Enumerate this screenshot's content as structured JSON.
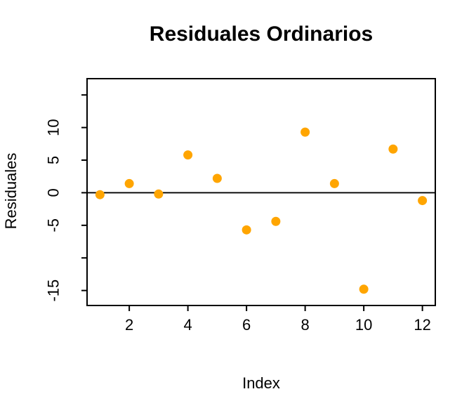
{
  "chart_data": {
    "type": "scatter",
    "title": "Residuales Ordinarios",
    "xlabel": "Index",
    "ylabel": "Residuales",
    "x": [
      1,
      2,
      3,
      4,
      5,
      6,
      7,
      8,
      9,
      10,
      11,
      12
    ],
    "values": [
      -0.3,
      1.4,
      -0.2,
      5.8,
      2.2,
      -5.7,
      -4.4,
      9.3,
      1.4,
      -14.8,
      6.7,
      -1.2
    ],
    "point_color": "#FFA500",
    "axis_color": "#000000",
    "text_color": "#000000",
    "background_color": "#FFFFFF",
    "x_ticks": [
      {
        "v": 2,
        "label": "2"
      },
      {
        "v": 4,
        "label": "4"
      },
      {
        "v": 6,
        "label": "6"
      },
      {
        "v": 8,
        "label": "8"
      },
      {
        "v": 10,
        "label": "10"
      },
      {
        "v": 12,
        "label": "12"
      }
    ],
    "y_ticks": [
      {
        "v": 15,
        "label": ""
      },
      {
        "v": 10,
        "label": "10"
      },
      {
        "v": 5,
        "label": "5"
      },
      {
        "v": 0,
        "label": "0"
      },
      {
        "v": -5,
        "label": "-5"
      },
      {
        "v": -10,
        "label": ""
      },
      {
        "v": -15,
        "label": "-15"
      }
    ],
    "xlim": [
      0.56,
      12.44
    ],
    "ylim": [
      -17.3,
      17.5
    ],
    "reference_line_y": 0,
    "grid": false,
    "legend": "none"
  }
}
